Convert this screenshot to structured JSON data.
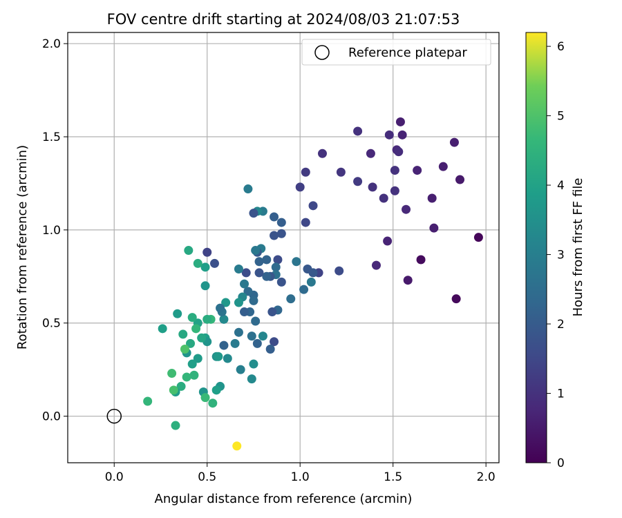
{
  "chart_data": {
    "type": "scatter",
    "title": "FOV centre drift starting at 2024/08/03 21:07:53",
    "xlabel": "Angular distance from reference (arcmin)",
    "ylabel": "Rotation from reference (arcmin)",
    "xlim": [
      -0.25,
      2.07
    ],
    "ylim": [
      -0.25,
      2.06
    ],
    "xticks": [
      "0.0",
      "0.5",
      "1.0",
      "1.5",
      "2.0"
    ],
    "yticks": [
      "0.0",
      "0.5",
      "1.0",
      "1.5",
      "2.0"
    ],
    "grid": true,
    "legend": {
      "placement": "top-right",
      "entries": [
        "Reference platepar"
      ]
    },
    "reference_point": {
      "x": 0.0,
      "y": 0.0
    },
    "colorbar": {
      "label": "Hours from first FF file",
      "min": 0,
      "max": 6.2,
      "ticks": [
        "0",
        "1",
        "2",
        "3",
        "4",
        "5",
        "6"
      ],
      "colormap": "viridis"
    },
    "series": [
      {
        "points": [
          {
            "x": 1.96,
            "y": 0.96,
            "c": 0.1
          },
          {
            "x": 1.84,
            "y": 0.63,
            "c": 0.15
          },
          {
            "x": 1.65,
            "y": 0.84,
            "c": 0.2
          },
          {
            "x": 1.86,
            "y": 1.27,
            "c": 0.5
          },
          {
            "x": 1.83,
            "y": 1.47,
            "c": 0.6
          },
          {
            "x": 1.72,
            "y": 1.01,
            "c": 0.6
          },
          {
            "x": 1.77,
            "y": 1.34,
            "c": 0.6
          },
          {
            "x": 1.71,
            "y": 1.17,
            "c": 0.6
          },
          {
            "x": 1.58,
            "y": 0.73,
            "c": 0.5
          },
          {
            "x": 1.63,
            "y": 1.32,
            "c": 0.7
          },
          {
            "x": 1.57,
            "y": 1.11,
            "c": 0.8
          },
          {
            "x": 1.54,
            "y": 1.58,
            "c": 0.6
          },
          {
            "x": 1.55,
            "y": 1.51,
            "c": 0.7
          },
          {
            "x": 1.52,
            "y": 1.43,
            "c": 0.8
          },
          {
            "x": 1.53,
            "y": 1.42,
            "c": 0.9
          },
          {
            "x": 1.48,
            "y": 1.51,
            "c": 0.9
          },
          {
            "x": 1.51,
            "y": 1.32,
            "c": 1.0
          },
          {
            "x": 1.51,
            "y": 1.21,
            "c": 1.0
          },
          {
            "x": 1.47,
            "y": 0.94,
            "c": 0.7
          },
          {
            "x": 1.45,
            "y": 1.17,
            "c": 1.0
          },
          {
            "x": 1.41,
            "y": 0.81,
            "c": 0.8
          },
          {
            "x": 1.38,
            "y": 1.41,
            "c": 0.8
          },
          {
            "x": 1.39,
            "y": 1.23,
            "c": 1.0
          },
          {
            "x": 1.31,
            "y": 1.53,
            "c": 1.0
          },
          {
            "x": 1.31,
            "y": 1.26,
            "c": 1.2
          },
          {
            "x": 1.22,
            "y": 1.31,
            "c": 1.1
          },
          {
            "x": 1.21,
            "y": 0.78,
            "c": 1.6
          },
          {
            "x": 1.12,
            "y": 1.41,
            "c": 1.0
          },
          {
            "x": 1.07,
            "y": 1.13,
            "c": 1.5
          },
          {
            "x": 1.1,
            "y": 0.77,
            "c": 1.4
          },
          {
            "x": 1.03,
            "y": 1.31,
            "c": 1.2
          },
          {
            "x": 1.0,
            "y": 1.23,
            "c": 1.3
          },
          {
            "x": 1.03,
            "y": 1.04,
            "c": 1.5
          },
          {
            "x": 1.04,
            "y": 0.79,
            "c": 1.9
          },
          {
            "x": 1.07,
            "y": 0.77,
            "c": 1.9
          },
          {
            "x": 1.02,
            "y": 0.68,
            "c": 2.4
          },
          {
            "x": 1.06,
            "y": 0.72,
            "c": 2.8
          },
          {
            "x": 0.98,
            "y": 0.83,
            "c": 2.7
          },
          {
            "x": 0.95,
            "y": 0.63,
            "c": 2.5
          },
          {
            "x": 0.9,
            "y": 1.04,
            "c": 2.1
          },
          {
            "x": 0.9,
            "y": 0.98,
            "c": 1.8
          },
          {
            "x": 0.88,
            "y": 0.84,
            "c": 1.6
          },
          {
            "x": 0.9,
            "y": 0.72,
            "c": 1.8
          },
          {
            "x": 0.88,
            "y": 0.57,
            "c": 2.3
          },
          {
            "x": 0.86,
            "y": 1.07,
            "c": 2.1
          },
          {
            "x": 0.86,
            "y": 0.97,
            "c": 1.8
          },
          {
            "x": 0.85,
            "y": 0.56,
            "c": 1.8
          },
          {
            "x": 0.86,
            "y": 0.4,
            "c": 1.6
          },
          {
            "x": 0.87,
            "y": 0.8,
            "c": 2.4
          },
          {
            "x": 0.87,
            "y": 0.76,
            "c": 2.6
          },
          {
            "x": 0.84,
            "y": 0.75,
            "c": 1.9
          },
          {
            "x": 0.84,
            "y": 0.36,
            "c": 2.1
          },
          {
            "x": 0.82,
            "y": 0.84,
            "c": 2.2
          },
          {
            "x": 0.82,
            "y": 0.75,
            "c": 2.2
          },
          {
            "x": 0.8,
            "y": 1.1,
            "c": 2.9
          },
          {
            "x": 0.79,
            "y": 0.9,
            "c": 2.9
          },
          {
            "x": 0.78,
            "y": 0.83,
            "c": 2.2
          },
          {
            "x": 0.78,
            "y": 0.77,
            "c": 1.8
          },
          {
            "x": 0.77,
            "y": 1.1,
            "c": 3.2
          },
          {
            "x": 0.77,
            "y": 0.88,
            "c": 2.0
          },
          {
            "x": 0.76,
            "y": 0.89,
            "c": 2.8
          },
          {
            "x": 0.75,
            "y": 1.09,
            "c": 1.8
          },
          {
            "x": 0.77,
            "y": 0.39,
            "c": 2.2
          },
          {
            "x": 0.8,
            "y": 0.43,
            "c": 3.2
          },
          {
            "x": 0.76,
            "y": 0.51,
            "c": 2.4
          },
          {
            "x": 0.75,
            "y": 0.65,
            "c": 2.3
          },
          {
            "x": 0.75,
            "y": 0.62,
            "c": 2.4
          },
          {
            "x": 0.74,
            "y": 0.43,
            "c": 2.6
          },
          {
            "x": 0.73,
            "y": 0.56,
            "c": 2.3
          },
          {
            "x": 0.72,
            "y": 1.22,
            "c": 2.9
          },
          {
            "x": 0.71,
            "y": 0.77,
            "c": 1.6
          },
          {
            "x": 0.72,
            "y": 0.67,
            "c": 2.4
          },
          {
            "x": 0.7,
            "y": 0.71,
            "c": 2.8
          },
          {
            "x": 0.7,
            "y": 0.56,
            "c": 2.1
          },
          {
            "x": 0.69,
            "y": 0.64,
            "c": 3.2
          },
          {
            "x": 0.67,
            "y": 0.79,
            "c": 2.9
          },
          {
            "x": 0.67,
            "y": 0.61,
            "c": 3.6
          },
          {
            "x": 0.67,
            "y": 0.45,
            "c": 2.6
          },
          {
            "x": 0.68,
            "y": 0.25,
            "c": 3.0
          },
          {
            "x": 0.74,
            "y": 0.2,
            "c": 3.3
          },
          {
            "x": 0.75,
            "y": 0.28,
            "c": 3.4
          },
          {
            "x": 0.65,
            "y": 0.39,
            "c": 2.9
          },
          {
            "x": 0.66,
            "y": -0.16,
            "c": 6.2
          },
          {
            "x": 0.6,
            "y": 0.61,
            "c": 3.7
          },
          {
            "x": 0.59,
            "y": 0.52,
            "c": 3.3
          },
          {
            "x": 0.58,
            "y": 0.56,
            "c": 2.7
          },
          {
            "x": 0.59,
            "y": 0.38,
            "c": 2.2
          },
          {
            "x": 0.61,
            "y": 0.31,
            "c": 3.3
          },
          {
            "x": 0.57,
            "y": 0.58,
            "c": 2.6
          },
          {
            "x": 0.57,
            "y": 0.16,
            "c": 3.6
          },
          {
            "x": 0.55,
            "y": 0.14,
            "c": 3.9
          },
          {
            "x": 0.55,
            "y": 0.32,
            "c": 3.5
          },
          {
            "x": 0.56,
            "y": 0.32,
            "c": 3.7
          },
          {
            "x": 0.54,
            "y": 0.82,
            "c": 1.7
          },
          {
            "x": 0.53,
            "y": 0.07,
            "c": 4.5
          },
          {
            "x": 0.52,
            "y": 0.52,
            "c": 4.6
          },
          {
            "x": 0.5,
            "y": 0.88,
            "c": 1.4
          },
          {
            "x": 0.5,
            "y": 0.52,
            "c": 4.3
          },
          {
            "x": 0.49,
            "y": 0.8,
            "c": 3.9
          },
          {
            "x": 0.49,
            "y": 0.7,
            "c": 3.6
          },
          {
            "x": 0.49,
            "y": 0.42,
            "c": 3.9
          },
          {
            "x": 0.5,
            "y": 0.4,
            "c": 3.6
          },
          {
            "x": 0.48,
            "y": 0.13,
            "c": 3.6
          },
          {
            "x": 0.49,
            "y": 0.1,
            "c": 4.7
          },
          {
            "x": 0.47,
            "y": 0.42,
            "c": 4.1
          },
          {
            "x": 0.45,
            "y": 0.82,
            "c": 4.3
          },
          {
            "x": 0.45,
            "y": 0.5,
            "c": 4.0
          },
          {
            "x": 0.45,
            "y": 0.31,
            "c": 3.8
          },
          {
            "x": 0.44,
            "y": 0.47,
            "c": 4.6
          },
          {
            "x": 0.43,
            "y": 0.22,
            "c": 4.5
          },
          {
            "x": 0.42,
            "y": 0.53,
            "c": 4.3
          },
          {
            "x": 0.42,
            "y": 0.28,
            "c": 3.9
          },
          {
            "x": 0.4,
            "y": 0.89,
            "c": 4.2
          },
          {
            "x": 0.41,
            "y": 0.39,
            "c": 4.2
          },
          {
            "x": 0.39,
            "y": 0.34,
            "c": 3.6
          },
          {
            "x": 0.38,
            "y": 0.36,
            "c": 5.0
          },
          {
            "x": 0.39,
            "y": 0.21,
            "c": 4.6
          },
          {
            "x": 0.37,
            "y": 0.44,
            "c": 4.2
          },
          {
            "x": 0.36,
            "y": 0.16,
            "c": 4.3
          },
          {
            "x": 0.34,
            "y": 0.55,
            "c": 3.8
          },
          {
            "x": 0.33,
            "y": 0.13,
            "c": 3.8
          },
          {
            "x": 0.33,
            "y": -0.05,
            "c": 4.4
          },
          {
            "x": 0.32,
            "y": 0.14,
            "c": 4.9
          },
          {
            "x": 0.31,
            "y": 0.23,
            "c": 4.8
          },
          {
            "x": 0.26,
            "y": 0.47,
            "c": 3.9
          },
          {
            "x": 0.18,
            "y": 0.08,
            "c": 4.6
          }
        ]
      }
    ]
  }
}
